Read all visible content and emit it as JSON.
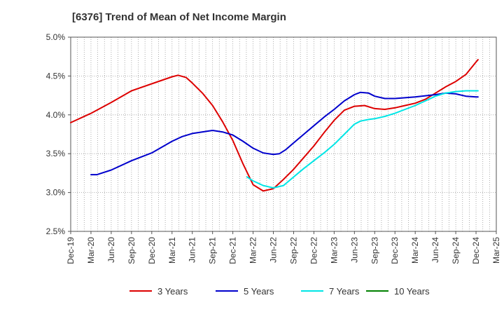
{
  "chart_data": {
    "type": "line",
    "title": "[6376]  Trend of Mean of Net Income Margin",
    "xlabel": "",
    "ylabel": "",
    "ylim": [
      0.025,
      0.05
    ],
    "yticks": [
      "2.5%",
      "3.0%",
      "3.5%",
      "4.0%",
      "4.5%",
      "5.0%"
    ],
    "ytick_values": [
      0.025,
      0.03,
      0.035,
      0.04,
      0.045,
      0.05
    ],
    "x_categories": [
      "Dec-19",
      "Mar-20",
      "Jun-20",
      "Sep-20",
      "Dec-20",
      "Mar-21",
      "Jun-21",
      "Sep-21",
      "Dec-21",
      "Mar-22",
      "Jun-22",
      "Sep-22",
      "Dec-22",
      "Mar-23",
      "Jun-23",
      "Sep-23",
      "Dec-23",
      "Mar-24",
      "Jun-24",
      "Sep-24",
      "Dec-24",
      "Mar-25"
    ],
    "grid": true,
    "legend_position": "bottom",
    "series": [
      {
        "name": "3 Years",
        "color": "#dd0000",
        "values": [
          [
            0,
            0.039
          ],
          [
            1,
            0.0402
          ],
          [
            2,
            0.0416
          ],
          [
            3,
            0.0431
          ],
          [
            4,
            0.044
          ],
          [
            5,
            0.0449
          ],
          [
            5.3,
            0.0451
          ],
          [
            5.7,
            0.0448
          ],
          [
            6,
            0.0441
          ],
          [
            6.5,
            0.0428
          ],
          [
            7,
            0.0412
          ],
          [
            7.5,
            0.0391
          ],
          [
            8,
            0.0367
          ],
          [
            8.5,
            0.0337
          ],
          [
            9,
            0.031
          ],
          [
            9.5,
            0.0302
          ],
          [
            10,
            0.0305
          ],
          [
            10.5,
            0.0317
          ],
          [
            11,
            0.033
          ],
          [
            11.5,
            0.0345
          ],
          [
            12,
            0.036
          ],
          [
            12.5,
            0.0377
          ],
          [
            13,
            0.0393
          ],
          [
            13.5,
            0.0406
          ],
          [
            14,
            0.0411
          ],
          [
            14.5,
            0.0412
          ],
          [
            15,
            0.0408
          ],
          [
            15.5,
            0.0407
          ],
          [
            16,
            0.0409
          ],
          [
            16.5,
            0.0412
          ],
          [
            17,
            0.0415
          ],
          [
            17.5,
            0.042
          ],
          [
            18,
            0.0428
          ],
          [
            18.5,
            0.0436
          ],
          [
            19,
            0.0443
          ],
          [
            19.5,
            0.0452
          ],
          [
            20,
            0.0468
          ],
          [
            20.1,
            0.0471
          ]
        ]
      },
      {
        "name": "5 Years",
        "color": "#0000cc",
        "values": [
          [
            1,
            0.0323
          ],
          [
            1.3,
            0.0323
          ],
          [
            2,
            0.0329
          ],
          [
            3,
            0.0341
          ],
          [
            4,
            0.0351
          ],
          [
            5,
            0.0366
          ],
          [
            5.5,
            0.0372
          ],
          [
            6,
            0.0376
          ],
          [
            7,
            0.038
          ],
          [
            7.5,
            0.0378
          ],
          [
            8,
            0.0374
          ],
          [
            8.5,
            0.0366
          ],
          [
            9,
            0.0357
          ],
          [
            9.5,
            0.0351
          ],
          [
            10,
            0.0349
          ],
          [
            10.3,
            0.035
          ],
          [
            10.6,
            0.0355
          ],
          [
            11,
            0.0364
          ],
          [
            11.5,
            0.0375
          ],
          [
            12,
            0.0386
          ],
          [
            12.5,
            0.0397
          ],
          [
            13,
            0.0407
          ],
          [
            13.5,
            0.0418
          ],
          [
            14,
            0.0426
          ],
          [
            14.3,
            0.0429
          ],
          [
            14.7,
            0.0428
          ],
          [
            15,
            0.0424
          ],
          [
            15.5,
            0.0421
          ],
          [
            16,
            0.0421
          ],
          [
            17,
            0.0423
          ],
          [
            18,
            0.0426
          ],
          [
            18.5,
            0.0428
          ],
          [
            19,
            0.0427
          ],
          [
            19.5,
            0.0424
          ],
          [
            20,
            0.0423
          ],
          [
            20.1,
            0.0423
          ]
        ]
      },
      {
        "name": "7 Years",
        "color": "#00e5e5",
        "values": [
          [
            8.7,
            0.032
          ],
          [
            9,
            0.0315
          ],
          [
            9.5,
            0.0309
          ],
          [
            10,
            0.0306
          ],
          [
            10.5,
            0.0309
          ],
          [
            11,
            0.032
          ],
          [
            11.5,
            0.0331
          ],
          [
            12,
            0.0341
          ],
          [
            12.5,
            0.0351
          ],
          [
            13,
            0.0362
          ],
          [
            13.5,
            0.0375
          ],
          [
            14,
            0.0388
          ],
          [
            14.3,
            0.0392
          ],
          [
            14.7,
            0.0394
          ],
          [
            15,
            0.0395
          ],
          [
            15.5,
            0.0398
          ],
          [
            16,
            0.0402
          ],
          [
            16.5,
            0.0407
          ],
          [
            17,
            0.0412
          ],
          [
            17.5,
            0.0418
          ],
          [
            18,
            0.0424
          ],
          [
            18.5,
            0.0428
          ],
          [
            19,
            0.043
          ],
          [
            19.5,
            0.0431
          ],
          [
            20,
            0.0431
          ],
          [
            20.1,
            0.0431
          ]
        ]
      },
      {
        "name": "10 Years",
        "color": "#008000",
        "values": []
      }
    ]
  }
}
